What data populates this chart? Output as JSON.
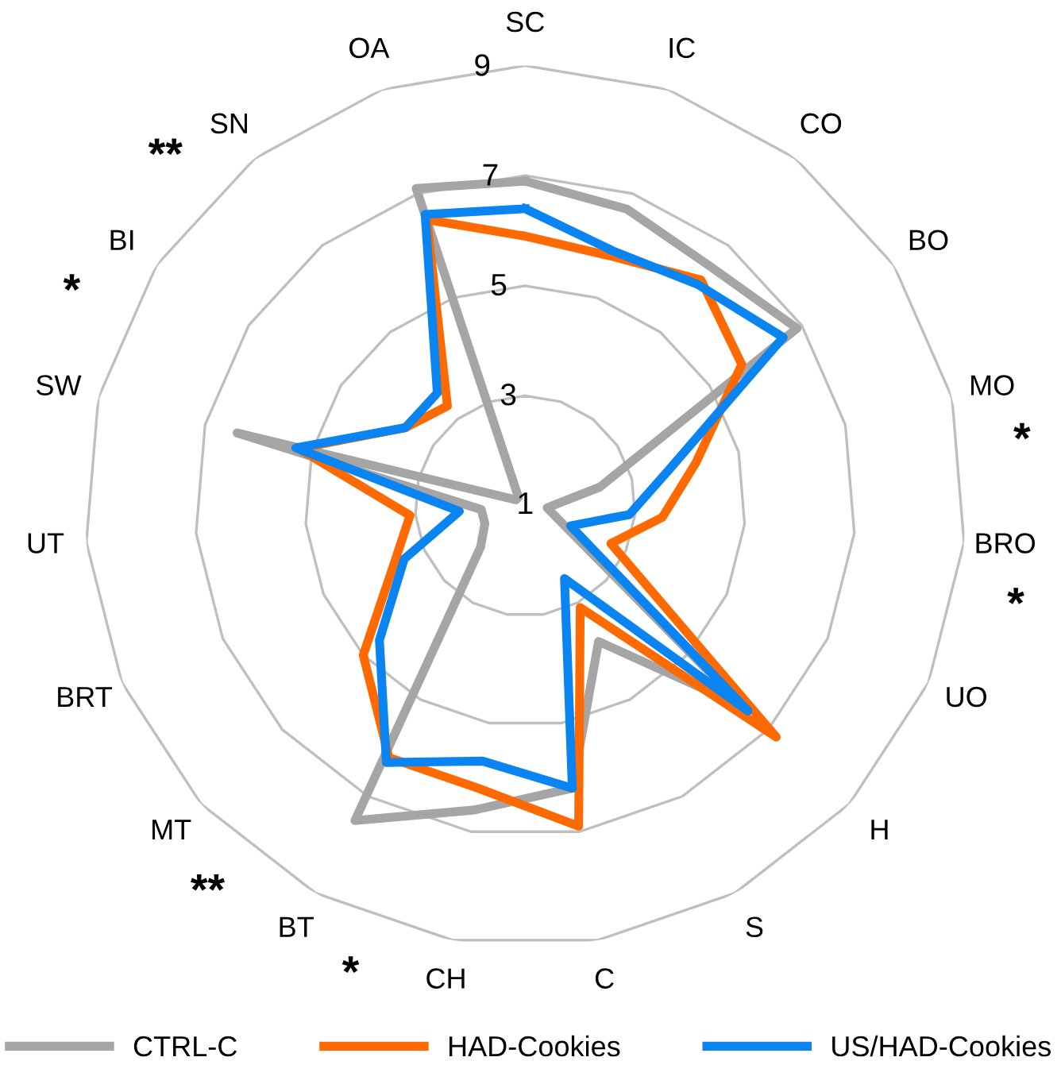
{
  "chart_data": {
    "type": "radar",
    "categories": [
      "SC",
      "IC",
      "CO",
      "BO",
      "MO",
      "BRO",
      "UO",
      "H",
      "S",
      "C",
      "CH",
      "BT",
      "MT",
      "BRT",
      "UT",
      "SW",
      "BI",
      "SN",
      "OA"
    ],
    "series": [
      {
        "name": "CTRL-C",
        "color": "#a5a5a5",
        "values": [
          6.9,
          6.7,
          6.5,
          6.9,
          2.4,
          1.4,
          1.7,
          6.4,
          3.8,
          6.2,
          6.6,
          7.5,
          2.1,
          1.8,
          1.8,
          6.4,
          1.2,
          1.2,
          7.1
        ]
      },
      {
        "name": "HAD-Cookies",
        "color": "#ff6a00",
        "values": [
          5.9,
          5.8,
          6.2,
          5.7,
          4.2,
          3.5,
          2.7,
          7.2,
          3.1,
          6.9,
          6.2,
          6.2,
          5.0,
          3.6,
          3.1,
          5.25,
          3.6,
          3.3,
          6.5
        ]
      },
      {
        "name": "US/HAD-Cookies",
        "color": "#0a84f0",
        "values": [
          6.4,
          5.9,
          6.1,
          6.6,
          3.7,
          2.9,
          1.9,
          6.5,
          2.5,
          6.2,
          5.7,
          6.3,
          4.6,
          3.4,
          2.2,
          5.3,
          3.6,
          3.6,
          6.6
        ]
      }
    ],
    "ylim": [
      1,
      9
    ],
    "yticks": [
      1,
      3,
      5,
      7,
      9
    ],
    "grid": true,
    "legend": "bottom",
    "marker": "none",
    "line_style": "solid",
    "annotations": [
      {
        "text": "**",
        "x": "SN"
      },
      {
        "text": "*",
        "x": "BI"
      },
      {
        "text": "*",
        "x": "MO"
      },
      {
        "text": "*",
        "x": "BRO"
      },
      {
        "text": "**",
        "x": "MT"
      },
      {
        "text": "*",
        "x": "BT"
      }
    ]
  }
}
